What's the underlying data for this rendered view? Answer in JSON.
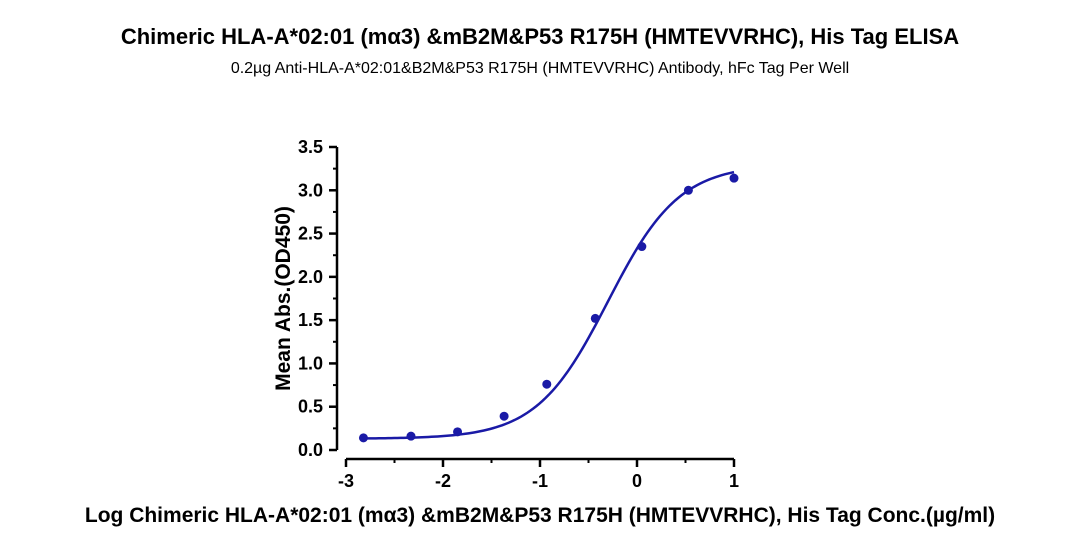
{
  "chart_data": {
    "type": "scatter",
    "title": "Chimeric HLA-A*02:01 (mα3) &mB2M&P53 R175H (HMTEVVRHC), His Tag ELISA",
    "subtitle": "0.2µg Anti-HLA-A*02:01&B2M&P53 R175H (HMTEVVRHC) Antibody, hFc Tag Per Well",
    "xlabel": "Log Chimeric HLA-A*02:01 (mα3) &mB2M&P53 R175H (HMTEVVRHC), His Tag Conc.(µg/ml)",
    "ylabel": "Mean Abs.(OD450)",
    "xlim": [
      -3,
      1
    ],
    "ylim": [
      0,
      3.5
    ],
    "xticks": [
      "-3",
      "-2",
      "-1",
      "0",
      "1"
    ],
    "yticks": [
      "0.0",
      "0.5",
      "1.0",
      "1.5",
      "2.0",
      "2.5",
      "3.0",
      "3.5"
    ],
    "grid": false,
    "color": "#1a1aa6",
    "series": [
      {
        "x": [
          -2.82,
          -2.33,
          -1.85,
          -1.37,
          -0.93,
          -0.43,
          0.05,
          0.53,
          1.0
        ],
        "y": [
          0.14,
          0.16,
          0.21,
          0.39,
          0.76,
          1.52,
          2.35,
          3.0,
          3.14
        ]
      }
    ],
    "fit": {
      "type": "4PL",
      "bottom": 0.13,
      "top": 3.3,
      "logEC50": -0.3,
      "hill": 1.18
    }
  }
}
